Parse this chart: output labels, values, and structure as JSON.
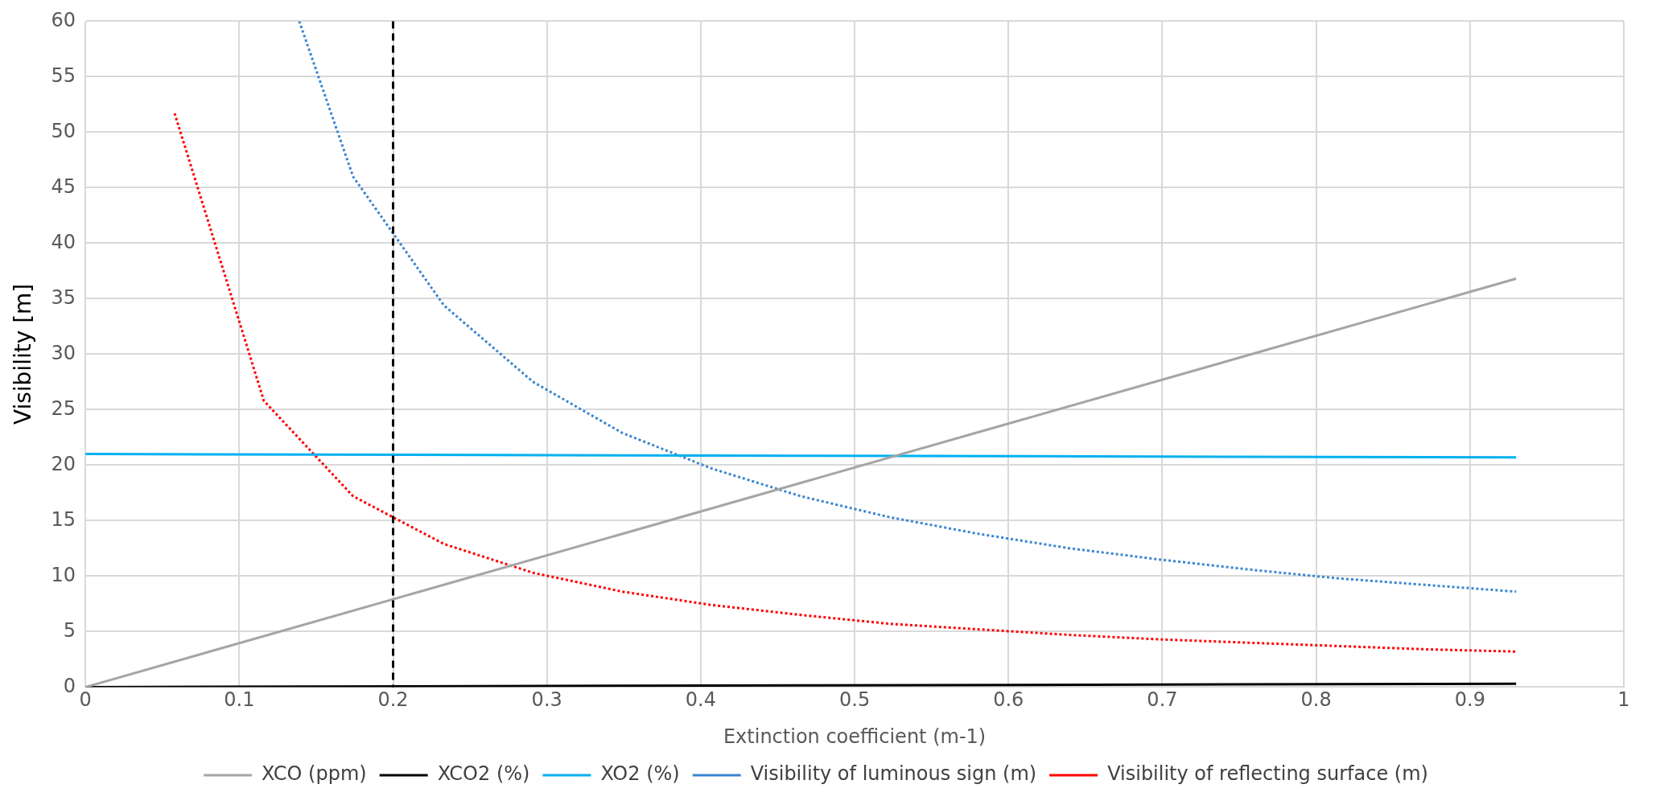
{
  "chart_data": {
    "type": "line",
    "xlabel": "Extinction coefficient (m-1)",
    "ylabel": "Visibility [m]",
    "xlim": [
      0,
      1
    ],
    "xticks": [
      0,
      0.1,
      0.2,
      0.3,
      0.4,
      0.5,
      0.6,
      0.7,
      0.8,
      0.9,
      1
    ],
    "ylim": [
      0,
      60
    ],
    "yticks": [
      0,
      5,
      10,
      15,
      20,
      25,
      30,
      35,
      40,
      45,
      50,
      55,
      60
    ],
    "grid": true,
    "legend": "bottom",
    "marker": "none",
    "ref_lines": [
      {
        "axis": "x",
        "value": 0.2,
        "color": "#000000",
        "line_style": "dashed"
      }
    ],
    "series": [
      {
        "name": "XCO (ppm)",
        "color": "#a5a5a5",
        "line_style": "solid",
        "x": [
          0,
          0.465,
          0.93
        ],
        "values": [
          0,
          18.4,
          36.8
        ]
      },
      {
        "name": "XCO2 (%)",
        "color": "#000000",
        "line_style": "solid",
        "x": [
          0,
          0.465,
          0.93
        ],
        "values": [
          0,
          0.15,
          0.3
        ]
      },
      {
        "name": "XO2 (%)",
        "color": "#00b0f0",
        "line_style": "solid",
        "x": [
          0,
          0.465,
          0.93
        ],
        "values": [
          21,
          20.85,
          20.7
        ]
      },
      {
        "name": "Visibility of luminous sign (m)",
        "color": "#3a86d0",
        "line_style": "dotted",
        "x": [
          0.139,
          0.174,
          0.233,
          0.291,
          0.349,
          0.407,
          0.465,
          0.523,
          0.581,
          0.64,
          0.698,
          0.756,
          0.814,
          0.872,
          0.93
        ],
        "values": [
          60,
          46,
          34.4,
          27.5,
          22.9,
          19.7,
          17.2,
          15.3,
          13.8,
          12.5,
          11.5,
          10.6,
          9.8,
          9.2,
          8.6
        ]
      },
      {
        "name": "Visibility of reflecting surface (m)",
        "color": "#ff0000",
        "line_style": "dotted",
        "x": [
          0.058,
          0.116,
          0.174,
          0.233,
          0.291,
          0.349,
          0.407,
          0.465,
          0.523,
          0.581,
          0.64,
          0.698,
          0.756,
          0.814,
          0.872,
          0.93
        ],
        "values": [
          51.7,
          25.8,
          17.2,
          12.9,
          10.3,
          8.6,
          7.4,
          6.5,
          5.7,
          5.2,
          4.7,
          4.3,
          4.0,
          3.7,
          3.4,
          3.2
        ]
      }
    ]
  }
}
